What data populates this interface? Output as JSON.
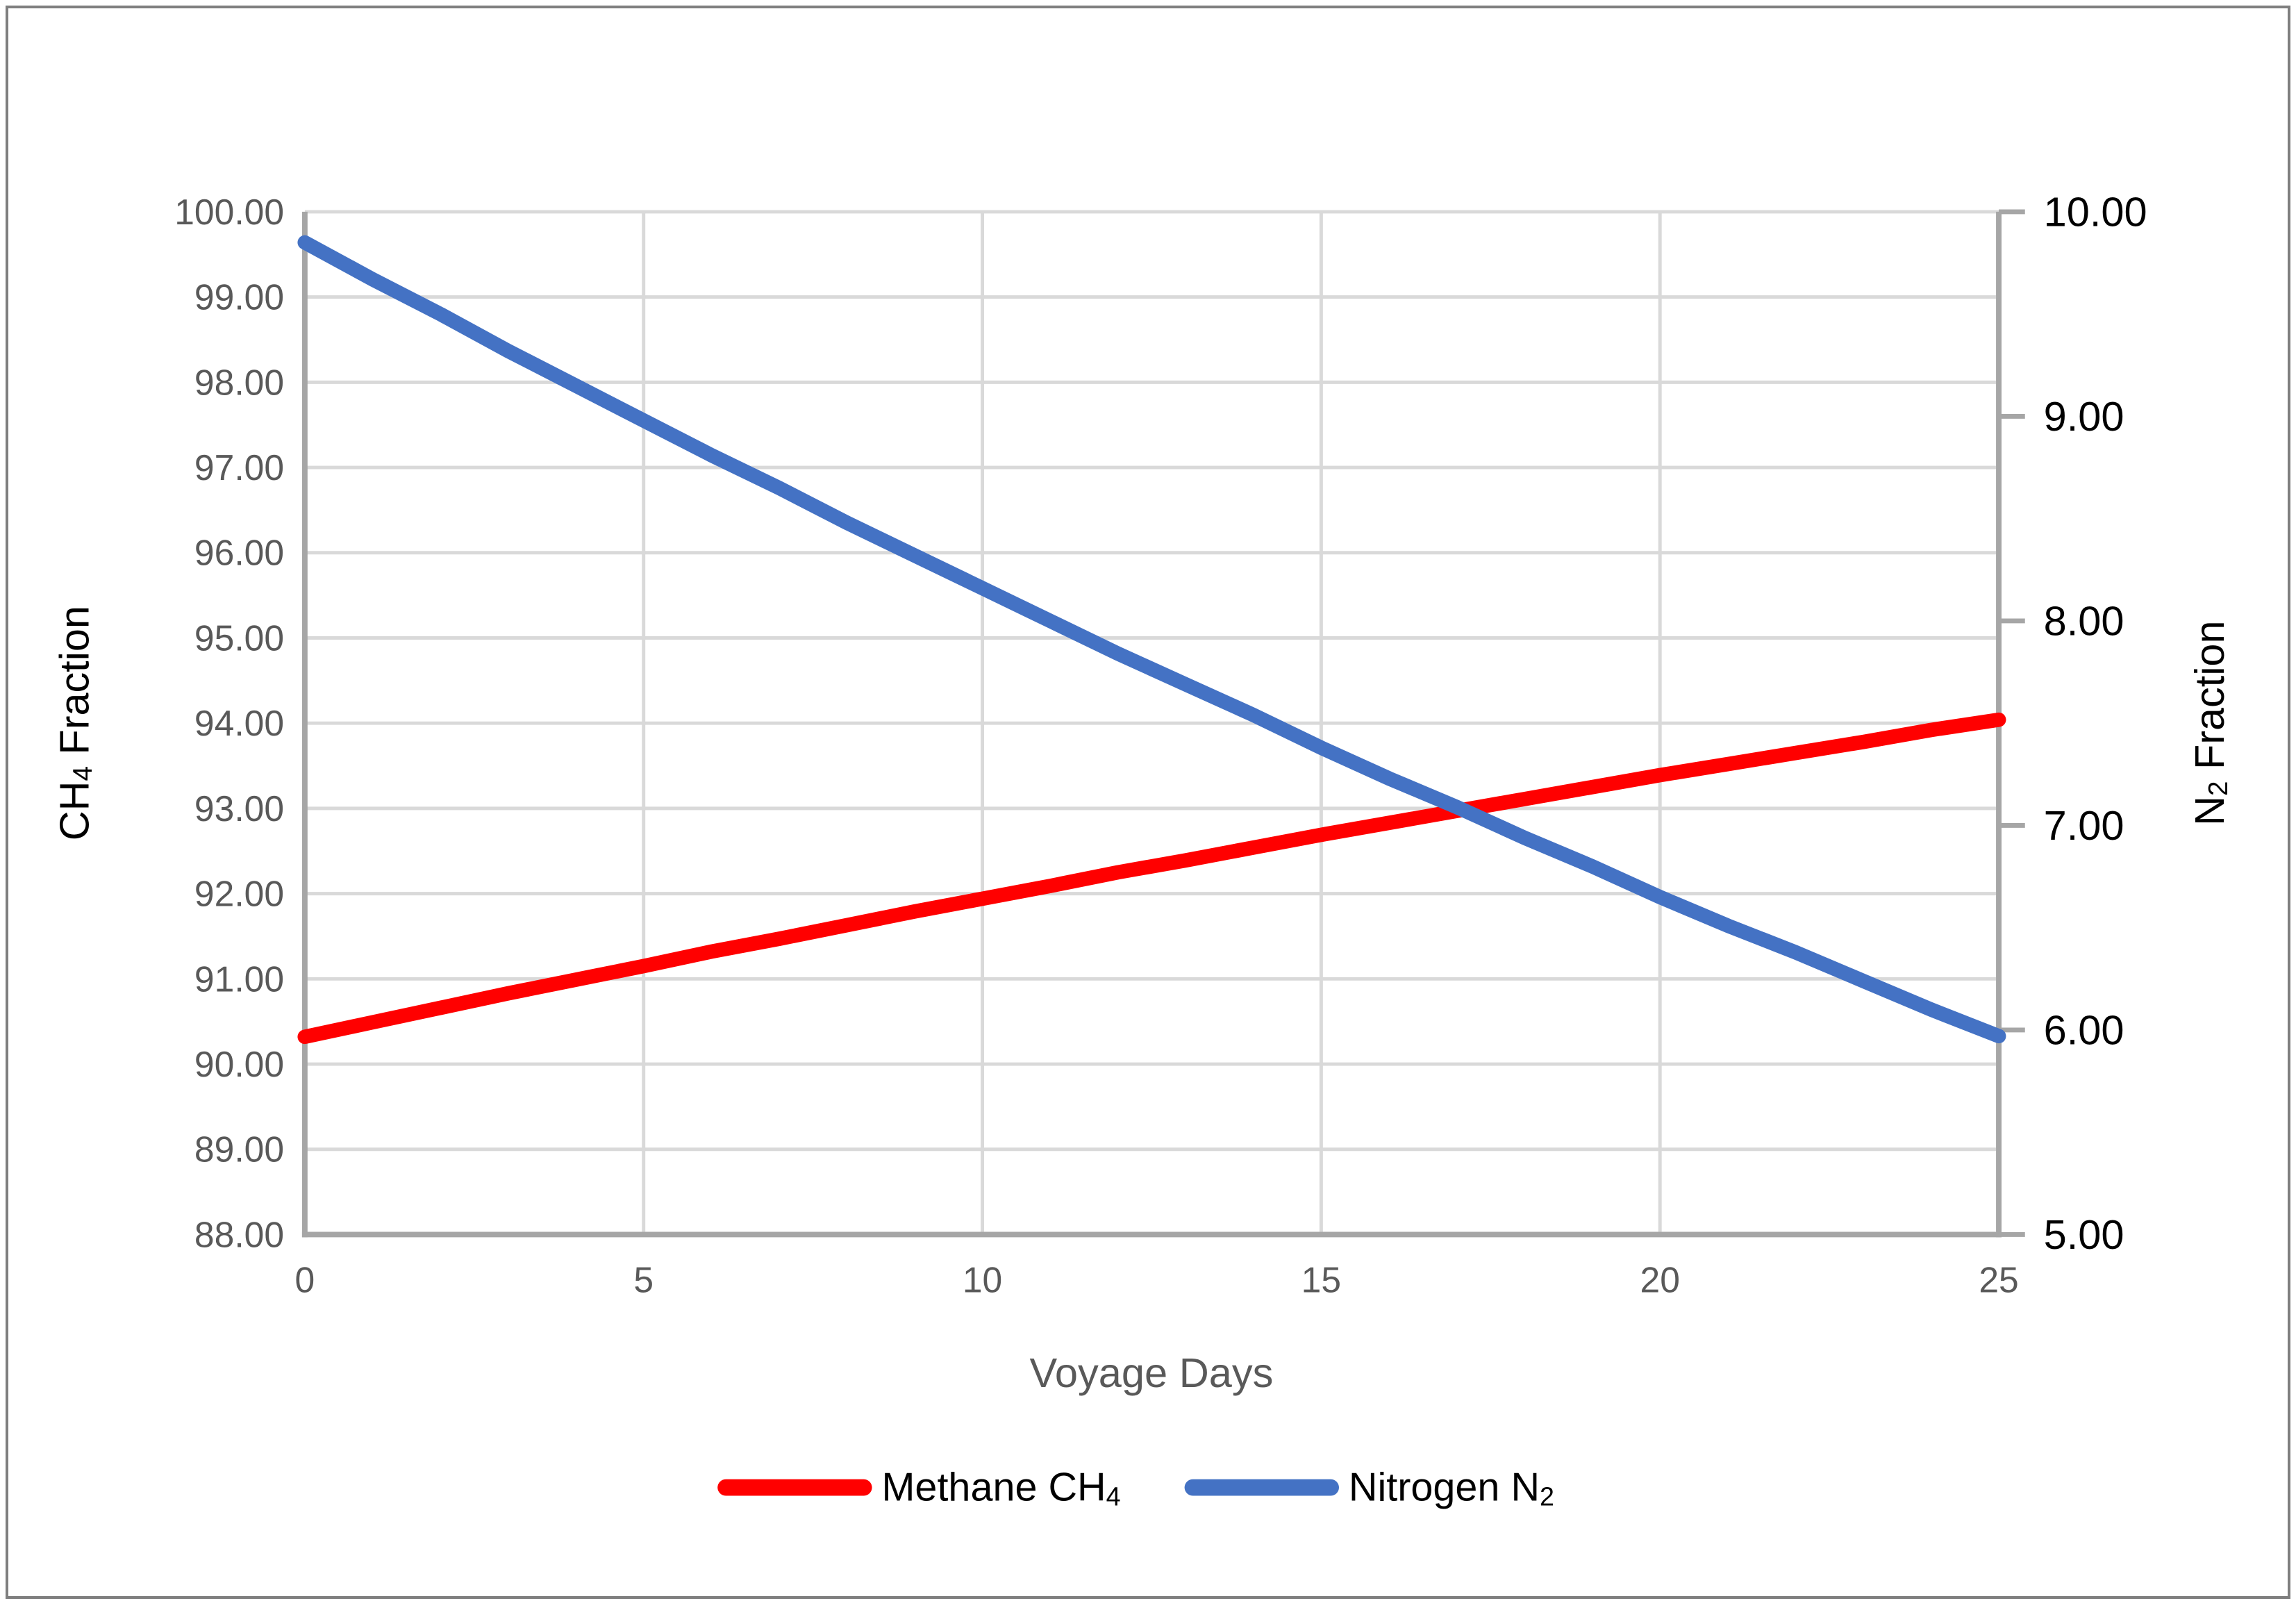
{
  "chart_data": {
    "type": "line",
    "title": "",
    "xlabel": "Voyage Days",
    "grid": true,
    "legend_position": "bottom",
    "x_axis": {
      "min": 0,
      "max": 25,
      "ticks": [
        0,
        5,
        10,
        15,
        20,
        25
      ]
    },
    "left_axis": {
      "title_parts": [
        {
          "t": "CH"
        },
        {
          "t": "4",
          "sub": true
        },
        {
          "t": " Fraction"
        }
      ],
      "min": 88,
      "max": 100,
      "step": 1,
      "decimals": 2,
      "tick_labels": [
        "88.00",
        "89.00",
        "90.00",
        "91.00",
        "92.00",
        "93.00",
        "94.00",
        "95.00",
        "96.00",
        "97.00",
        "98.00",
        "99.00",
        "100.00"
      ]
    },
    "right_axis": {
      "title_parts": [
        {
          "t": "N"
        },
        {
          "t": "2",
          "sub": true
        },
        {
          "t": " Fraction"
        }
      ],
      "min": 5,
      "max": 10,
      "step": 1,
      "decimals": 2,
      "tick_labels": [
        "5.00",
        "6.00",
        "7.00",
        "8.00",
        "9.00",
        "10.00"
      ]
    },
    "x": [
      0,
      1,
      2,
      3,
      4,
      5,
      6,
      7,
      8,
      9,
      10,
      11,
      12,
      13,
      14,
      15,
      16,
      17,
      18,
      19,
      20,
      21,
      22,
      23,
      24,
      25
    ],
    "series": [
      {
        "id": "methane-ch4",
        "name_parts": [
          {
            "t": "Methane CH"
          },
          {
            "t": "4",
            "sub": true
          }
        ],
        "axis": "left",
        "color": "#FF0000",
        "values": [
          90.32,
          90.49,
          90.66,
          90.83,
          90.99,
          91.15,
          91.32,
          91.47,
          91.63,
          91.79,
          91.94,
          92.09,
          92.25,
          92.39,
          92.54,
          92.69,
          92.83,
          92.97,
          93.11,
          93.25,
          93.39,
          93.52,
          93.65,
          93.78,
          93.92,
          94.04
        ]
      },
      {
        "id": "nitrogen-n2",
        "name_parts": [
          {
            "t": "Nitrogen N"
          },
          {
            "t": "2",
            "sub": true
          }
        ],
        "axis": "right",
        "color": "#4472C4",
        "values": [
          9.85,
          9.67,
          9.5,
          9.32,
          9.15,
          8.98,
          8.81,
          8.65,
          8.48,
          8.32,
          8.16,
          8.0,
          7.84,
          7.69,
          7.54,
          7.38,
          7.23,
          7.09,
          6.94,
          6.8,
          6.65,
          6.51,
          6.38,
          6.24,
          6.1,
          5.97
        ]
      }
    ]
  },
  "colors": {
    "background": "#FFFFFF",
    "border": "#7F7F7F",
    "gridline": "#D9D9D9",
    "axis_line": "#A6A6A6",
    "tick_text": "#595959",
    "black_text": "#000000",
    "methane": "#FF0000",
    "nitrogen": "#4472C4"
  }
}
